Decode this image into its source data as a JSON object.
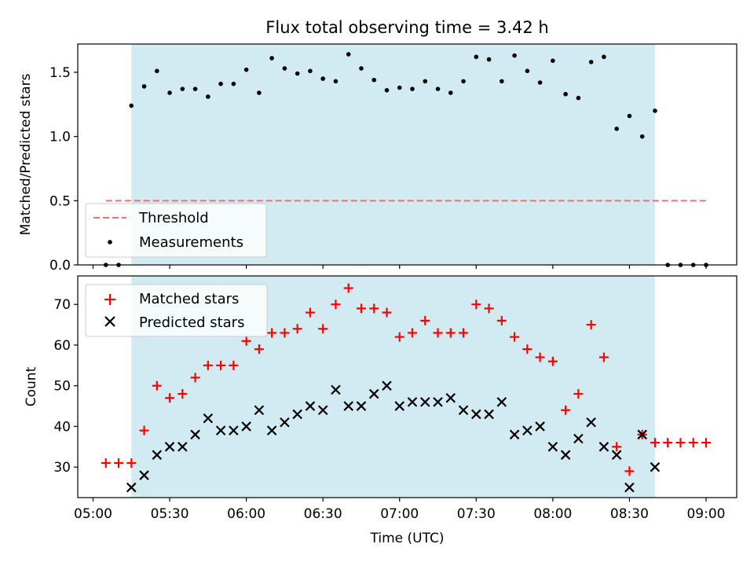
{
  "chart_data": [
    {
      "type": "scatter",
      "title": "Flux total observing time = 3.42 h",
      "ylabel": "Matched/Predicted stars",
      "xlim": [
        "04:54",
        "09:12"
      ],
      "ylim": [
        0,
        1.72
      ],
      "yticks": [
        0.0,
        0.5,
        1.0,
        1.5
      ],
      "ytick_labels": [
        "0.0",
        "0.5",
        "1.0",
        "1.5"
      ],
      "shaded_span": [
        "05:15",
        "08:40"
      ],
      "shade_color": "#add8e6",
      "legend_position": "lower-left",
      "threshold": {
        "name": "Threshold",
        "y": 0.5,
        "x_range": [
          "05:05",
          "09:00"
        ],
        "color": "#f07070",
        "style": "dashed"
      },
      "series": [
        {
          "name": "Measurements",
          "marker": "dot",
          "color": "#000000",
          "points": [
            [
              "05:05",
              0.0
            ],
            [
              "05:10",
              0.0
            ],
            [
              "05:15",
              1.24
            ],
            [
              "05:20",
              1.39
            ],
            [
              "05:25",
              1.51
            ],
            [
              "05:30",
              1.34
            ],
            [
              "05:35",
              1.37
            ],
            [
              "05:40",
              1.37
            ],
            [
              "05:45",
              1.31
            ],
            [
              "05:50",
              1.41
            ],
            [
              "05:55",
              1.41
            ],
            [
              "06:00",
              1.52
            ],
            [
              "06:05",
              1.34
            ],
            [
              "06:10",
              1.61
            ],
            [
              "06:15",
              1.53
            ],
            [
              "06:20",
              1.49
            ],
            [
              "06:25",
              1.51
            ],
            [
              "06:30",
              1.45
            ],
            [
              "06:35",
              1.43
            ],
            [
              "06:40",
              1.64
            ],
            [
              "06:45",
              1.53
            ],
            [
              "06:50",
              1.44
            ],
            [
              "06:55",
              1.36
            ],
            [
              "07:00",
              1.38
            ],
            [
              "07:05",
              1.37
            ],
            [
              "07:10",
              1.43
            ],
            [
              "07:15",
              1.37
            ],
            [
              "07:20",
              1.34
            ],
            [
              "07:25",
              1.43
            ],
            [
              "07:30",
              1.62
            ],
            [
              "07:35",
              1.6
            ],
            [
              "07:40",
              1.43
            ],
            [
              "07:45",
              1.63
            ],
            [
              "07:50",
              1.51
            ],
            [
              "07:55",
              1.42
            ],
            [
              "08:00",
              1.59
            ],
            [
              "08:05",
              1.33
            ],
            [
              "08:10",
              1.3
            ],
            [
              "08:15",
              1.58
            ],
            [
              "08:20",
              1.62
            ],
            [
              "08:25",
              1.06
            ],
            [
              "08:30",
              1.16
            ],
            [
              "08:35",
              1.0
            ],
            [
              "08:40",
              1.2
            ],
            [
              "08:45",
              0.0
            ],
            [
              "08:50",
              0.0
            ],
            [
              "08:55",
              0.0
            ],
            [
              "09:00",
              0.0
            ]
          ]
        }
      ]
    },
    {
      "type": "scatter",
      "xlabel": "Time (UTC)",
      "ylabel": "Count",
      "xlim": [
        "04:54",
        "09:12"
      ],
      "ylim": [
        22.5,
        77
      ],
      "yticks": [
        30,
        40,
        50,
        60,
        70
      ],
      "ytick_labels": [
        "30",
        "40",
        "50",
        "60",
        "70"
      ],
      "xticks": [
        "05:00",
        "05:30",
        "06:00",
        "06:30",
        "07:00",
        "07:30",
        "08:00",
        "08:30",
        "09:00"
      ],
      "shaded_span": [
        "05:15",
        "08:40"
      ],
      "shade_color": "#add8e6",
      "legend_position": "upper-left",
      "series": [
        {
          "name": "Matched stars",
          "marker": "plus",
          "color": "#ff0000",
          "points": [
            [
              "05:05",
              31
            ],
            [
              "05:10",
              31
            ],
            [
              "05:15",
              31
            ],
            [
              "05:20",
              39
            ],
            [
              "05:25",
              50
            ],
            [
              "05:30",
              47
            ],
            [
              "05:35",
              48
            ],
            [
              "05:40",
              52
            ],
            [
              "05:45",
              55
            ],
            [
              "05:50",
              55
            ],
            [
              "05:55",
              55
            ],
            [
              "06:00",
              61
            ],
            [
              "06:05",
              59
            ],
            [
              "06:10",
              63
            ],
            [
              "06:15",
              63
            ],
            [
              "06:20",
              64
            ],
            [
              "06:25",
              68
            ],
            [
              "06:30",
              64
            ],
            [
              "06:35",
              70
            ],
            [
              "06:40",
              74
            ],
            [
              "06:45",
              69
            ],
            [
              "06:50",
              69
            ],
            [
              "06:55",
              68
            ],
            [
              "07:00",
              62
            ],
            [
              "07:05",
              63
            ],
            [
              "07:10",
              66
            ],
            [
              "07:15",
              63
            ],
            [
              "07:20",
              63
            ],
            [
              "07:25",
              63
            ],
            [
              "07:30",
              70
            ],
            [
              "07:35",
              69
            ],
            [
              "07:40",
              66
            ],
            [
              "07:45",
              62
            ],
            [
              "07:50",
              59
            ],
            [
              "07:55",
              57
            ],
            [
              "08:00",
              56
            ],
            [
              "08:05",
              44
            ],
            [
              "08:10",
              48
            ],
            [
              "08:15",
              65
            ],
            [
              "08:20",
              57
            ],
            [
              "08:25",
              35
            ],
            [
              "08:30",
              29
            ],
            [
              "08:35",
              38
            ],
            [
              "08:40",
              36
            ],
            [
              "08:45",
              36
            ],
            [
              "08:50",
              36
            ],
            [
              "08:55",
              36
            ],
            [
              "09:00",
              36
            ]
          ]
        },
        {
          "name": "Predicted stars",
          "marker": "x",
          "color": "#000000",
          "points": [
            [
              "05:15",
              25
            ],
            [
              "05:20",
              28
            ],
            [
              "05:25",
              33
            ],
            [
              "05:30",
              35
            ],
            [
              "05:35",
              35
            ],
            [
              "05:40",
              38
            ],
            [
              "05:45",
              42
            ],
            [
              "05:50",
              39
            ],
            [
              "05:55",
              39
            ],
            [
              "06:00",
              40
            ],
            [
              "06:05",
              44
            ],
            [
              "06:10",
              39
            ],
            [
              "06:15",
              41
            ],
            [
              "06:20",
              43
            ],
            [
              "06:25",
              45
            ],
            [
              "06:30",
              44
            ],
            [
              "06:35",
              49
            ],
            [
              "06:40",
              45
            ],
            [
              "06:45",
              45
            ],
            [
              "06:50",
              48
            ],
            [
              "06:55",
              50
            ],
            [
              "07:00",
              45
            ],
            [
              "07:05",
              46
            ],
            [
              "07:10",
              46
            ],
            [
              "07:15",
              46
            ],
            [
              "07:20",
              47
            ],
            [
              "07:25",
              44
            ],
            [
              "07:30",
              43
            ],
            [
              "07:35",
              43
            ],
            [
              "07:40",
              46
            ],
            [
              "07:45",
              38
            ],
            [
              "07:50",
              39
            ],
            [
              "07:55",
              40
            ],
            [
              "08:00",
              35
            ],
            [
              "08:05",
              33
            ],
            [
              "08:10",
              37
            ],
            [
              "08:15",
              41
            ],
            [
              "08:20",
              35
            ],
            [
              "08:25",
              33
            ],
            [
              "08:30",
              25
            ],
            [
              "08:35",
              38
            ],
            [
              "08:40",
              30
            ]
          ]
        }
      ]
    }
  ]
}
